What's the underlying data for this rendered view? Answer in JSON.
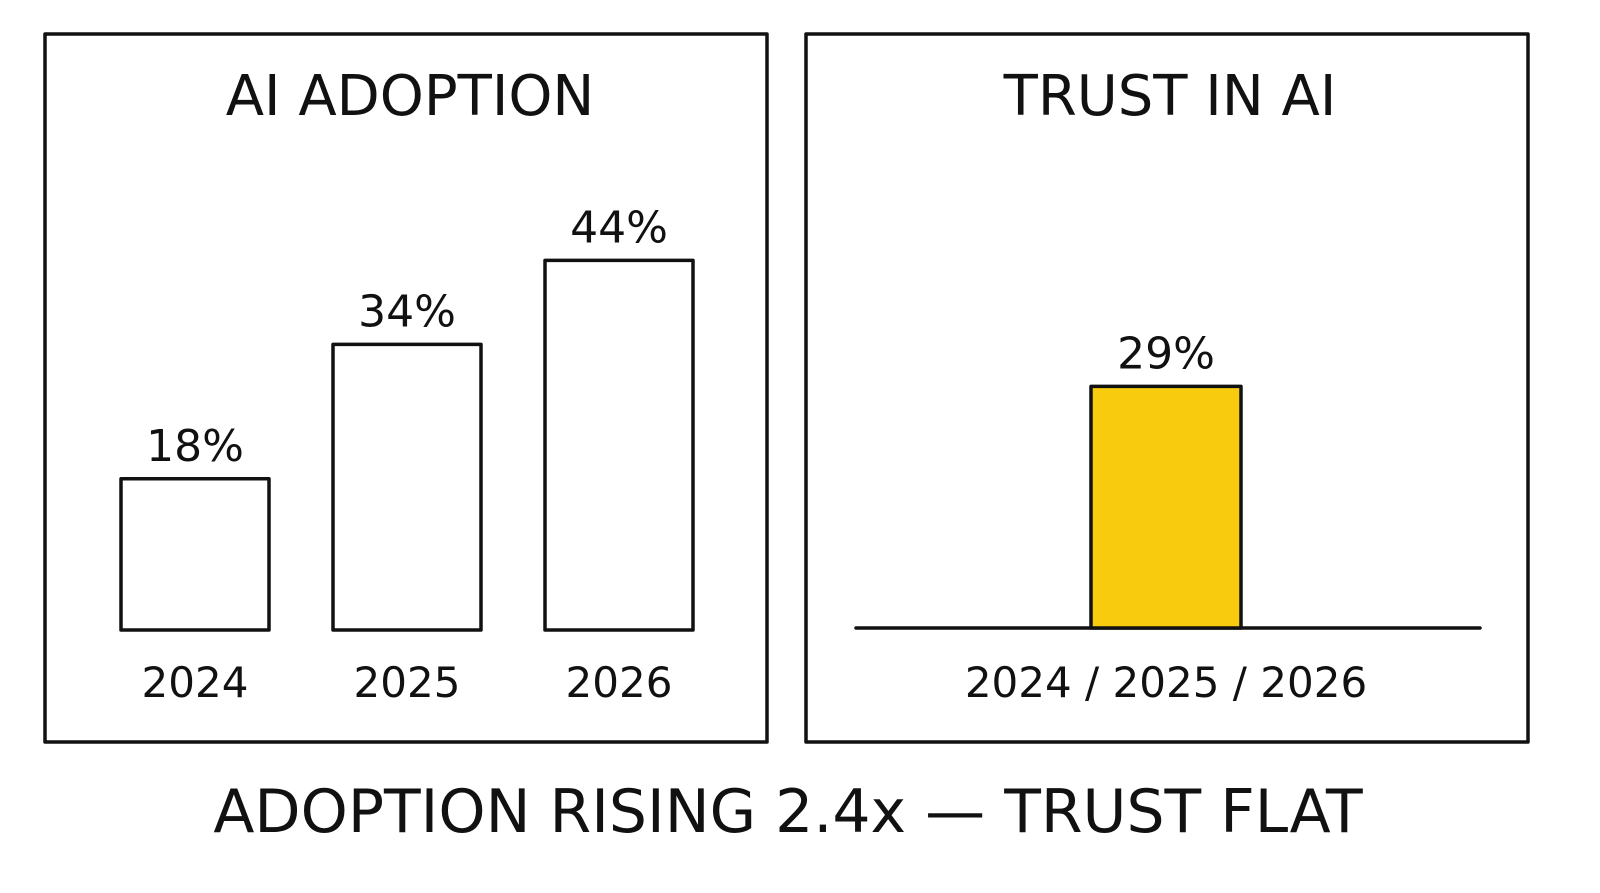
{
  "colors": {
    "ink": "#111111",
    "background": "#ffffff",
    "adoption_bar_fill": "#ffffff",
    "trust_bar_fill": "#f8cb0e"
  },
  "chart_data": [
    {
      "type": "bar",
      "title": "AI ADOPTION",
      "xlabel": "",
      "ylabel": "",
      "categories": [
        "2024",
        "2025",
        "2026"
      ],
      "values": [
        18,
        34,
        44
      ],
      "value_labels": [
        "18%",
        "34%",
        "44%"
      ],
      "unit": "%",
      "ylim": [
        0,
        60
      ],
      "grid": false,
      "legend": "none",
      "bar_fill": "#ffffff"
    },
    {
      "type": "bar",
      "title": "TRUST IN AI",
      "xlabel": "",
      "ylabel": "",
      "categories": [
        "2024 / 2025 / 2026"
      ],
      "values": [
        29
      ],
      "value_labels": [
        "29%"
      ],
      "unit": "%",
      "ylim": [
        0,
        60
      ],
      "grid": false,
      "legend": "none",
      "bar_fill": "#f8cb0e"
    }
  ],
  "caption": "ADOPTION RISING 2.4x — TRUST FLAT"
}
